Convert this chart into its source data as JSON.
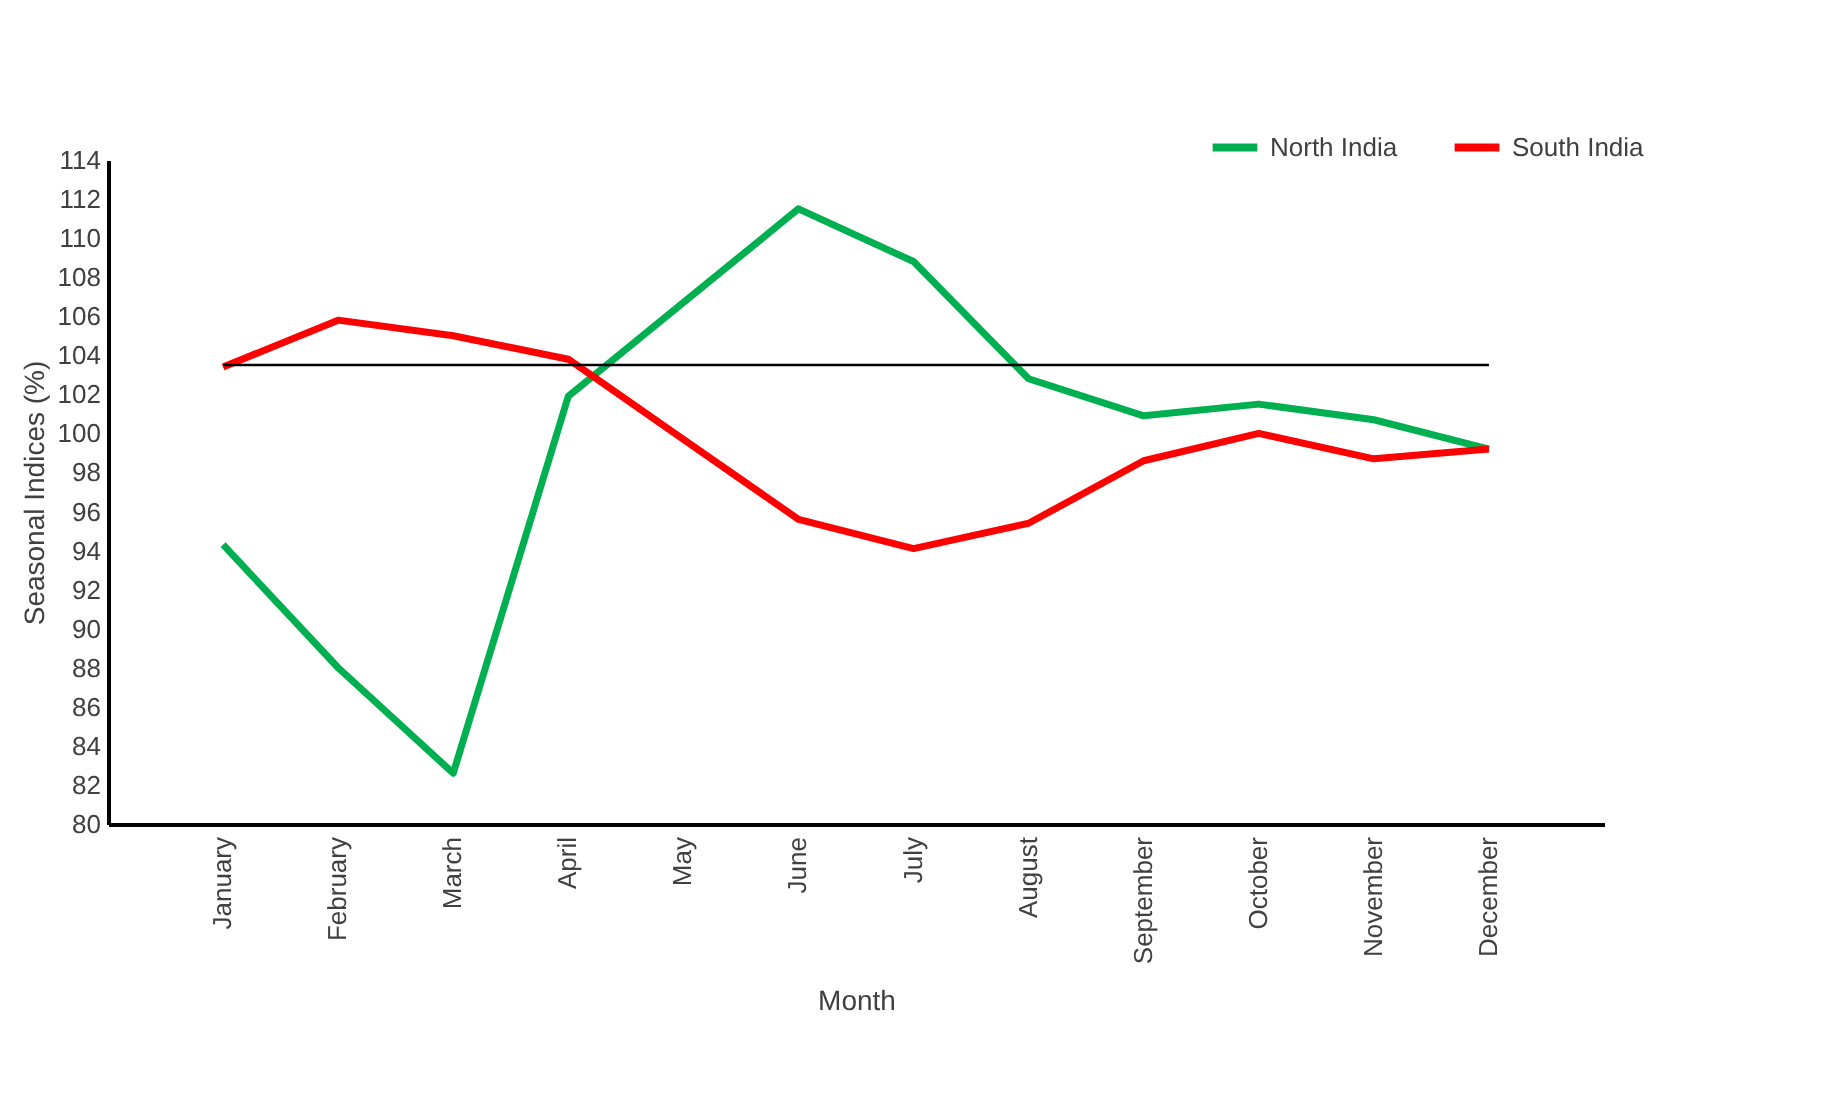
{
  "chart_data": {
    "type": "line",
    "xlabel": "Month",
    "ylabel": "Seasonal Indices (%)",
    "categories": [
      "January",
      "February",
      "March",
      "April",
      "May",
      "June",
      "July",
      "August",
      "September",
      "October",
      "November",
      "December"
    ],
    "series": [
      {
        "name": "North India",
        "color": "#00b050",
        "values": [
          94.3,
          88.0,
          82.6,
          101.9,
          106.7,
          111.5,
          108.8,
          102.8,
          100.9,
          101.5,
          100.7,
          99.2
        ]
      },
      {
        "name": "South India",
        "color": "#ff0000",
        "values": [
          103.4,
          105.8,
          105.0,
          103.8,
          99.7,
          95.6,
          94.1,
          95.4,
          98.6,
          100.0,
          98.7,
          99.2
        ]
      }
    ],
    "ylim": [
      80,
      114
    ],
    "yticks": [
      80,
      82,
      84,
      86,
      88,
      90,
      92,
      94,
      96,
      98,
      100,
      102,
      104,
      106,
      108,
      110,
      112,
      114
    ],
    "ref_lines": [
      {
        "axis": "y",
        "value": 103.5,
        "color": "#000000"
      }
    ],
    "grid": false,
    "legend": "top right",
    "marker": "none",
    "line_style": "solid"
  }
}
